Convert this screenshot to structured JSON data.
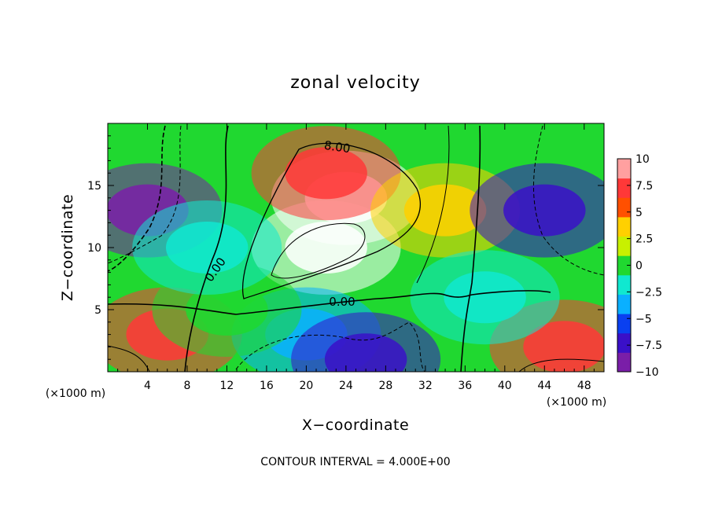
{
  "chart_data": {
    "type": "heatmap",
    "title": "zonal velocity",
    "xlabel": "X−coordinate",
    "ylabel": "Z−coordinate",
    "x_unit": "(×1000 m)",
    "y_unit": "(×1000 m)",
    "xlim": [
      0,
      50
    ],
    "ylim": [
      0,
      20
    ],
    "x_ticks": [
      4,
      8,
      12,
      16,
      20,
      24,
      28,
      32,
      36,
      40,
      44,
      48
    ],
    "x_tick_labels": [
      "4",
      "8",
      "12",
      "16",
      "20",
      "24",
      "28",
      "32",
      "36",
      "40",
      "44",
      "48"
    ],
    "y_ticks": [
      5,
      10,
      15
    ],
    "y_tick_labels": [
      "5",
      "10",
      "15"
    ],
    "colorbar": {
      "range": [
        -10,
        10
      ],
      "ticks": [
        10,
        7.5,
        5,
        2.5,
        0,
        -2.5,
        -5,
        -7.5,
        -10
      ],
      "tick_labels": [
        "10",
        "7.5",
        "5",
        "2.5",
        "0",
        "−2.5",
        "−5",
        "−7.5",
        "−10"
      ],
      "colors": [
        "#7a1ea8",
        "#3a10c8",
        "#0a40f0",
        "#0ab0ff",
        "#10e8d0",
        "#20d830",
        "#c8f000",
        "#ffd000",
        "#ff5000",
        "#ff3838",
        "#ffa0a0"
      ]
    },
    "contour_labels": [
      "8.00",
      "0.00",
      "0.00"
    ],
    "contour_interval_text": "CONTOUR INTERVAL = 4.000E+00",
    "field_features": [
      {
        "x": 24,
        "z": 14,
        "value": 12
      },
      {
        "x": 22,
        "z": 10,
        "value": 12
      },
      {
        "x": 22,
        "z": 16,
        "value": 8
      },
      {
        "x": 34,
        "z": 13,
        "value": 3
      },
      {
        "x": 44,
        "z": 13,
        "value": -8
      },
      {
        "x": 4,
        "z": 13,
        "value": -9
      },
      {
        "x": 6,
        "z": 3,
        "value": 8
      },
      {
        "x": 46,
        "z": 2,
        "value": 8
      },
      {
        "x": 20,
        "z": 3,
        "value": -4
      },
      {
        "x": 26,
        "z": 1,
        "value": -8
      },
      {
        "x": 12,
        "z": 5,
        "value": 0
      },
      {
        "x": 10,
        "z": 10,
        "value": -2
      },
      {
        "x": 38,
        "z": 6,
        "value": -1
      }
    ]
  }
}
